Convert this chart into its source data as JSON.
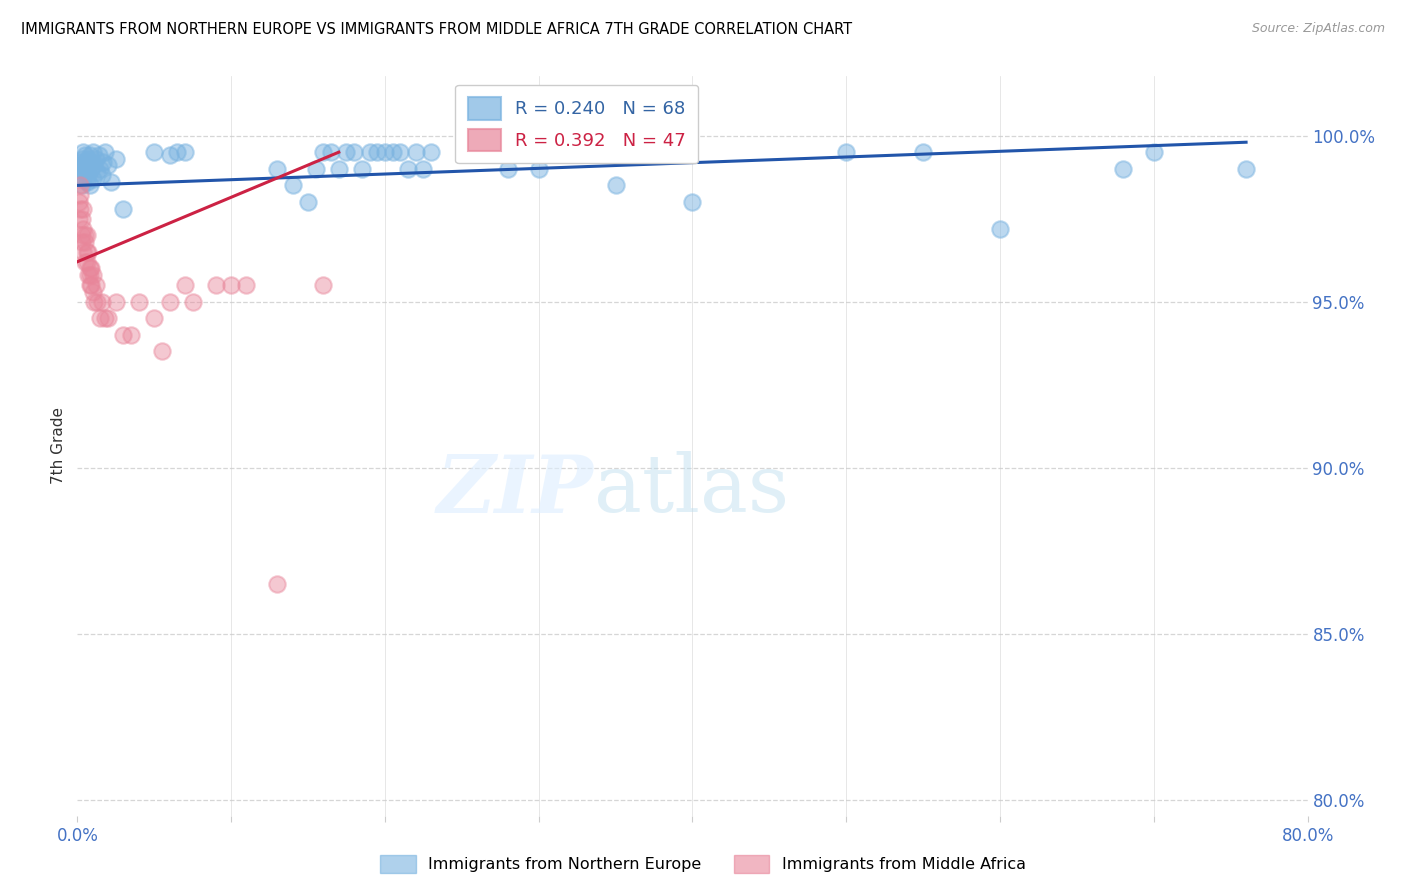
{
  "title": "IMMIGRANTS FROM NORTHERN EUROPE VS IMMIGRANTS FROM MIDDLE AFRICA 7TH GRADE CORRELATION CHART",
  "source": "Source: ZipAtlas.com",
  "ylabel": "7th Grade",
  "y_ticks": [
    80.0,
    85.0,
    90.0,
    95.0,
    100.0
  ],
  "xlim": [
    0.0,
    0.8
  ],
  "ylim": [
    79.5,
    101.8
  ],
  "blue_R": 0.24,
  "blue_N": 68,
  "pink_R": 0.392,
  "pink_N": 47,
  "blue_color": "#7ab3e0",
  "pink_color": "#e8869a",
  "trend_blue": "#2255aa",
  "trend_pink": "#cc2244",
  "blue_trend_x": [
    0.0,
    0.76
  ],
  "blue_trend_y": [
    98.5,
    99.8
  ],
  "pink_trend_x": [
    0.0,
    0.17
  ],
  "pink_trend_y": [
    96.2,
    99.5
  ],
  "blue_scatter_x": [
    0.001,
    0.002,
    0.002,
    0.003,
    0.003,
    0.003,
    0.004,
    0.004,
    0.004,
    0.005,
    0.005,
    0.005,
    0.006,
    0.006,
    0.007,
    0.007,
    0.007,
    0.008,
    0.008,
    0.009,
    0.009,
    0.01,
    0.01,
    0.011,
    0.012,
    0.013,
    0.014,
    0.015,
    0.016,
    0.017,
    0.018,
    0.02,
    0.022,
    0.025,
    0.03,
    0.05,
    0.06,
    0.065,
    0.07,
    0.13,
    0.14,
    0.15,
    0.155,
    0.16,
    0.165,
    0.17,
    0.175,
    0.18,
    0.185,
    0.19,
    0.195,
    0.2,
    0.205,
    0.21,
    0.215,
    0.22,
    0.225,
    0.23,
    0.28,
    0.3,
    0.35,
    0.4,
    0.5,
    0.55,
    0.6,
    0.68,
    0.7,
    0.76
  ],
  "blue_scatter_y": [
    99.0,
    99.2,
    98.8,
    99.3,
    99.0,
    98.5,
    99.5,
    99.1,
    98.7,
    99.4,
    98.9,
    99.2,
    99.0,
    98.6,
    99.3,
    98.8,
    99.1,
    99.4,
    98.5,
    99.2,
    99.0,
    99.5,
    98.7,
    99.1,
    99.3,
    98.9,
    99.4,
    99.0,
    98.8,
    99.2,
    99.5,
    99.1,
    98.6,
    99.3,
    97.8,
    99.5,
    99.4,
    99.5,
    99.5,
    99.0,
    98.5,
    98.0,
    99.0,
    99.5,
    99.5,
    99.0,
    99.5,
    99.5,
    99.0,
    99.5,
    99.5,
    99.5,
    99.5,
    99.5,
    99.0,
    99.5,
    99.0,
    99.5,
    99.0,
    99.0,
    98.5,
    98.0,
    99.5,
    99.5,
    97.2,
    99.0,
    99.5,
    99.0
  ],
  "pink_scatter_x": [
    0.001,
    0.001,
    0.002,
    0.002,
    0.002,
    0.003,
    0.003,
    0.003,
    0.004,
    0.004,
    0.004,
    0.005,
    0.005,
    0.005,
    0.006,
    0.006,
    0.006,
    0.007,
    0.007,
    0.008,
    0.008,
    0.008,
    0.009,
    0.009,
    0.01,
    0.01,
    0.011,
    0.012,
    0.013,
    0.015,
    0.016,
    0.018,
    0.02,
    0.025,
    0.03,
    0.035,
    0.04,
    0.05,
    0.055,
    0.06,
    0.07,
    0.075,
    0.09,
    0.1,
    0.11,
    0.13,
    0.16
  ],
  "pink_scatter_y": [
    97.5,
    98.0,
    98.2,
    97.8,
    98.5,
    97.0,
    97.5,
    96.8,
    97.2,
    96.5,
    97.8,
    96.2,
    97.0,
    96.8,
    96.5,
    97.0,
    96.2,
    96.5,
    95.8,
    95.5,
    96.0,
    95.8,
    95.5,
    96.0,
    95.3,
    95.8,
    95.0,
    95.5,
    95.0,
    94.5,
    95.0,
    94.5,
    94.5,
    95.0,
    94.0,
    94.0,
    95.0,
    94.5,
    93.5,
    95.0,
    95.5,
    95.0,
    95.5,
    95.5,
    95.5,
    86.5,
    95.5
  ]
}
